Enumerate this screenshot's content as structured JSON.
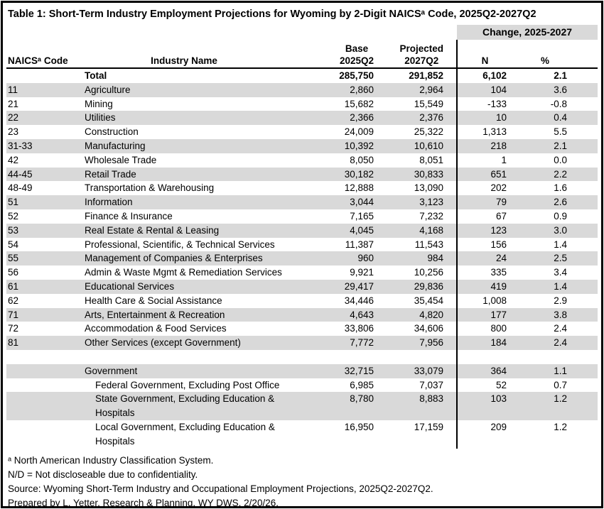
{
  "title": "Table 1: Short-Term Industry Employment Projections for Wyoming by 2-Digit NAICSᵃ Code, 2025Q2-2027Q2",
  "table": {
    "change_header": "Change, 2025-2027",
    "columns": {
      "naics": "NAICSᵃ Code",
      "industry": "Industry Name",
      "base_line1": "Base",
      "base_line2": "2025Q2",
      "projected_line1": "Projected",
      "projected_line2": "2027Q2",
      "n": "N",
      "pct": "%"
    },
    "rows": [
      {
        "code": "",
        "name": "Total",
        "base": "285,750",
        "projected": "291,852",
        "n": "6,102",
        "pct": "2.1",
        "bold": true,
        "shaded": false,
        "indent": 0
      },
      {
        "code": "11",
        "name": "Agriculture",
        "base": "2,860",
        "projected": "2,964",
        "n": "104",
        "pct": "3.6",
        "shaded": true,
        "indent": 0
      },
      {
        "code": "21",
        "name": "Mining",
        "base": "15,682",
        "projected": "15,549",
        "n": "-133",
        "pct": "-0.8",
        "shaded": false,
        "indent": 0
      },
      {
        "code": "22",
        "name": "Utilities",
        "base": "2,366",
        "projected": "2,376",
        "n": "10",
        "pct": "0.4",
        "shaded": true,
        "indent": 0
      },
      {
        "code": "23",
        "name": "Construction",
        "base": "24,009",
        "projected": "25,322",
        "n": "1,313",
        "pct": "5.5",
        "shaded": false,
        "indent": 0
      },
      {
        "code": "31-33",
        "name": "Manufacturing",
        "base": "10,392",
        "projected": "10,610",
        "n": "218",
        "pct": "2.1",
        "shaded": true,
        "indent": 0
      },
      {
        "code": "42",
        "name": "Wholesale Trade",
        "base": "8,050",
        "projected": "8,051",
        "n": "1",
        "pct": "0.0",
        "shaded": false,
        "indent": 0
      },
      {
        "code": "44-45",
        "name": "Retail Trade",
        "base": "30,182",
        "projected": "30,833",
        "n": "651",
        "pct": "2.2",
        "shaded": true,
        "indent": 0
      },
      {
        "code": "48-49",
        "name": "Transportation & Warehousing",
        "base": "12,888",
        "projected": "13,090",
        "n": "202",
        "pct": "1.6",
        "shaded": false,
        "indent": 0
      },
      {
        "code": "51",
        "name": "Information",
        "base": "3,044",
        "projected": "3,123",
        "n": "79",
        "pct": "2.6",
        "shaded": true,
        "indent": 0
      },
      {
        "code": "52",
        "name": "Finance & Insurance",
        "base": "7,165",
        "projected": "7,232",
        "n": "67",
        "pct": "0.9",
        "shaded": false,
        "indent": 0
      },
      {
        "code": "53",
        "name": "Real Estate & Rental & Leasing",
        "base": "4,045",
        "projected": "4,168",
        "n": "123",
        "pct": "3.0",
        "shaded": true,
        "indent": 0
      },
      {
        "code": "54",
        "name": "Professional, Scientific, & Technical Services",
        "base": "11,387",
        "projected": "11,543",
        "n": "156",
        "pct": "1.4",
        "shaded": false,
        "indent": 0
      },
      {
        "code": "55",
        "name": "Management of Companies & Enterprises",
        "base": "960",
        "projected": "984",
        "n": "24",
        "pct": "2.5",
        "shaded": true,
        "indent": 0
      },
      {
        "code": "56",
        "name": "Admin & Waste Mgmt & Remediation Services",
        "base": "9,921",
        "projected": "10,256",
        "n": "335",
        "pct": "3.4",
        "shaded": false,
        "indent": 0
      },
      {
        "code": "61",
        "name": "Educational Services",
        "base": "29,417",
        "projected": "29,836",
        "n": "419",
        "pct": "1.4",
        "shaded": true,
        "indent": 0
      },
      {
        "code": "62",
        "name": "Health Care & Social Assistance",
        "base": "34,446",
        "projected": "35,454",
        "n": "1,008",
        "pct": "2.9",
        "shaded": false,
        "indent": 0
      },
      {
        "code": "71",
        "name": "Arts, Entertainment & Recreation",
        "base": "4,643",
        "projected": "4,820",
        "n": "177",
        "pct": "3.8",
        "shaded": true,
        "indent": 0
      },
      {
        "code": "72",
        "name": "Accommodation & Food Services",
        "base": "33,806",
        "projected": "34,606",
        "n": "800",
        "pct": "2.4",
        "shaded": false,
        "indent": 0
      },
      {
        "code": "81",
        "name": "Other Services (except Government)",
        "base": "7,772",
        "projected": "7,956",
        "n": "184",
        "pct": "2.4",
        "shaded": true,
        "indent": 0
      },
      {
        "blank": true
      },
      {
        "code": "",
        "name": "Government",
        "base": "32,715",
        "projected": "33,079",
        "n": "364",
        "pct": "1.1",
        "shaded": true,
        "indent": 0
      },
      {
        "code": "",
        "name": "Federal Government, Excluding Post Office",
        "base": "6,985",
        "projected": "7,037",
        "n": "52",
        "pct": "0.7",
        "shaded": false,
        "indent": 1
      },
      {
        "code": "",
        "name": "State Government, Excluding Education & Hospitals",
        "base": "8,780",
        "projected": "8,883",
        "n": "103",
        "pct": "1.2",
        "shaded": true,
        "indent": 1
      },
      {
        "code": "",
        "name": "Local Government, Excluding Education & Hospitals",
        "base": "16,950",
        "projected": "17,159",
        "n": "209",
        "pct": "1.2",
        "shaded": false,
        "indent": 1
      }
    ]
  },
  "footnotes": [
    "ᵃ North American Industry Classification System.",
    "N/D = Not discloseable due to confidentiality.",
    "Source: Wyoming Short-Term Industry and Occupational Employment Projections, 2025Q2-2027Q2.",
    "Prepared by L. Yetter, Research & Planning, WY DWS, 2/20/26."
  ],
  "colors": {
    "row_shade": "#d9d9d9",
    "border": "#000000",
    "text": "#000000"
  }
}
